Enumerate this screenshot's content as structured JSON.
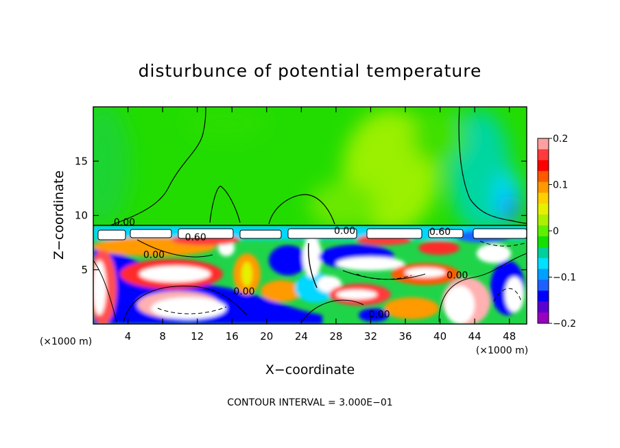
{
  "chart_data": {
    "type": "heatmap",
    "title": "disturbunce of potential temperature",
    "xlabel": "X−coordinate",
    "ylabel": "Z−coordinate",
    "x_unit_left": "(×1000 m)",
    "x_unit_right": "(×1000 m)",
    "xlim": [
      0,
      50
    ],
    "ylim": [
      0,
      20
    ],
    "xticks": [
      4,
      8,
      12,
      16,
      20,
      24,
      28,
      32,
      36,
      40,
      44,
      48
    ],
    "yticks": [
      5,
      10,
      15
    ],
    "grid": false,
    "colorbar": {
      "range": [
        -0.2,
        0.2
      ],
      "tick_values": [
        0.2,
        0.1,
        0,
        -0.1,
        -0.2
      ],
      "tick_labels": [
        "0.2",
        "0.1",
        "0",
        "−0.1",
        "−0.2"
      ],
      "colors": [
        "#ffa0a0",
        "#ff3b3b",
        "#ff0000",
        "#ff5a00",
        "#ff9a00",
        "#ffd000",
        "#e6f000",
        "#aaf000",
        "#5ef000",
        "#14e000",
        "#00d09a",
        "#00e0ff",
        "#00a0ff",
        "#1e60ff",
        "#0000ff",
        "#5a00d0",
        "#9a00c0"
      ]
    },
    "contour_labels": [
      {
        "text": "0.00",
        "x": 3.6,
        "z": 9.1
      },
      {
        "text": "0.60",
        "x": 11.8,
        "z": 7.7
      },
      {
        "text": "0.00",
        "x": 7.0,
        "z": 6.1
      },
      {
        "text": "0.00",
        "x": 17.4,
        "z": 2.7
      },
      {
        "text": "0.00",
        "x": 29.0,
        "z": 8.3
      },
      {
        "text": "0.60",
        "x": 40.0,
        "z": 8.2
      },
      {
        "text": "0.00",
        "x": 42.0,
        "z": 4.2
      },
      {
        "text": "0.00",
        "x": 33.0,
        "z": 0.6
      }
    ],
    "footer": "CONTOUR INTERVAL = 3.000E−01"
  }
}
